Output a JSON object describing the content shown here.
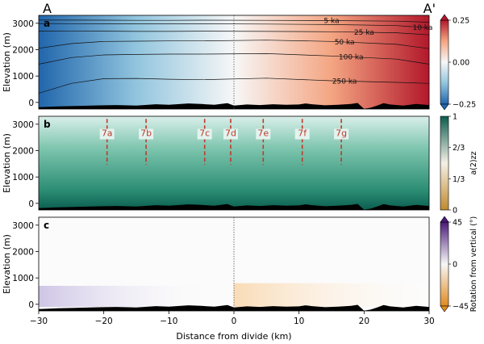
{
  "figure": {
    "section_start_label": "A",
    "section_end_label": "A'",
    "ylabel": "Elevation (m)",
    "xlabel": "Distance from divide (km)",
    "xticks": [
      "−30",
      "−20",
      "−10",
      "0",
      "10",
      "20",
      "30"
    ],
    "yticks": [
      "0",
      "1000",
      "2000",
      "3000"
    ]
  },
  "chart_data": [
    {
      "panel": "a",
      "type": "heatmap",
      "title": "",
      "xlabel": "",
      "ylabel": "Elevation (m)",
      "xlim": [
        -30,
        30
      ],
      "ylim": [
        -250,
        3300
      ],
      "divide_x": 0,
      "colors": [
        "#2166ac",
        "#f7f7f7",
        "#b2182b"
      ],
      "colorbar": {
        "ticks": [
          "0.25",
          "0.00",
          "−0.25"
        ],
        "range": [
          -0.25,
          0.25
        ],
        "label": ""
      },
      "isochrones": [
        {
          "label": "5 ka",
          "y": [
            3120,
            3120,
            3115,
            3110,
            3110,
            3115,
            3110,
            3100,
            3080,
            3040
          ]
        },
        {
          "label": "10 ka",
          "y": [
            2990,
            2985,
            2980,
            2975,
            2975,
            2980,
            2970,
            2950,
            2910,
            2830
          ]
        },
        {
          "label": "25 ka",
          "y": [
            2700,
            2710,
            2700,
            2690,
            2690,
            2700,
            2690,
            2680,
            2640,
            2560
          ]
        },
        {
          "label": "50 ka",
          "y": [
            2050,
            2230,
            2310,
            2320,
            2330,
            2330,
            2360,
            2310,
            2200,
            2040
          ]
        },
        {
          "label": "100 ka",
          "y": [
            1450,
            1700,
            1800,
            1820,
            1830,
            1830,
            1850,
            1760,
            1640,
            1450
          ]
        },
        {
          "label": "250 ka",
          "y": [
            350,
            720,
            900,
            910,
            880,
            860,
            920,
            820,
            760,
            720
          ]
        }
      ],
      "isochrone_x": [
        -30,
        -25,
        -20,
        -15,
        -10,
        -5,
        5,
        15,
        25,
        30
      ]
    },
    {
      "panel": "b",
      "type": "heatmap",
      "title": "",
      "xlabel": "",
      "ylabel": "Elevation (m)",
      "xlim": [
        -30,
        30
      ],
      "ylim": [
        -250,
        3300
      ],
      "colors": [
        "#c08a2d",
        "#f5f0e6",
        "#0b5d4e"
      ],
      "colorbar": {
        "ticks": [
          "1",
          "2/3",
          "1/3",
          "0"
        ],
        "range": [
          0,
          1
        ],
        "label": "a(2)zz"
      },
      "profiles": [
        {
          "label": "7a",
          "x": -19.5
        },
        {
          "label": "7b",
          "x": -13.5
        },
        {
          "label": "7c",
          "x": -4.5
        },
        {
          "label": "7d",
          "x": -0.5
        },
        {
          "label": "7e",
          "x": 4.5
        },
        {
          "label": "7f",
          "x": 10.5
        },
        {
          "label": "7g",
          "x": 16.5
        }
      ],
      "profile_range": [
        1400,
        3200
      ]
    },
    {
      "panel": "c",
      "type": "heatmap",
      "title": "",
      "xlabel": "Distance from divide (km)",
      "ylabel": "Elevation (m)",
      "xlim": [
        -30,
        30
      ],
      "ylim": [
        -250,
        3300
      ],
      "divide_x": 0,
      "colors": [
        "#e08a20",
        "#f7f7f7",
        "#4a1a78"
      ],
      "colorbar": {
        "ticks": [
          "45",
          "0",
          "−45"
        ],
        "range": [
          -45,
          45
        ],
        "label": "Rotation from vertical (°)"
      }
    }
  ],
  "bedrock": {
    "x": [
      -30,
      -27,
      -25,
      -22,
      -20,
      -18,
      -15,
      -12,
      -10,
      -7,
      -5,
      -3,
      -1,
      0,
      2,
      4,
      6,
      8,
      10,
      11,
      12,
      14,
      16,
      18,
      19,
      20,
      21,
      22,
      23,
      24,
      26,
      28,
      30
    ],
    "y": [
      -180,
      -150,
      -140,
      -120,
      -110,
      -100,
      -120,
      -70,
      -90,
      -40,
      -60,
      -90,
      -30,
      -120,
      -80,
      -100,
      -70,
      -90,
      -80,
      -40,
      -70,
      -110,
      -90,
      -60,
      -20,
      -240,
      -200,
      -120,
      -30,
      -80,
      -120,
      -60,
      -100
    ]
  }
}
